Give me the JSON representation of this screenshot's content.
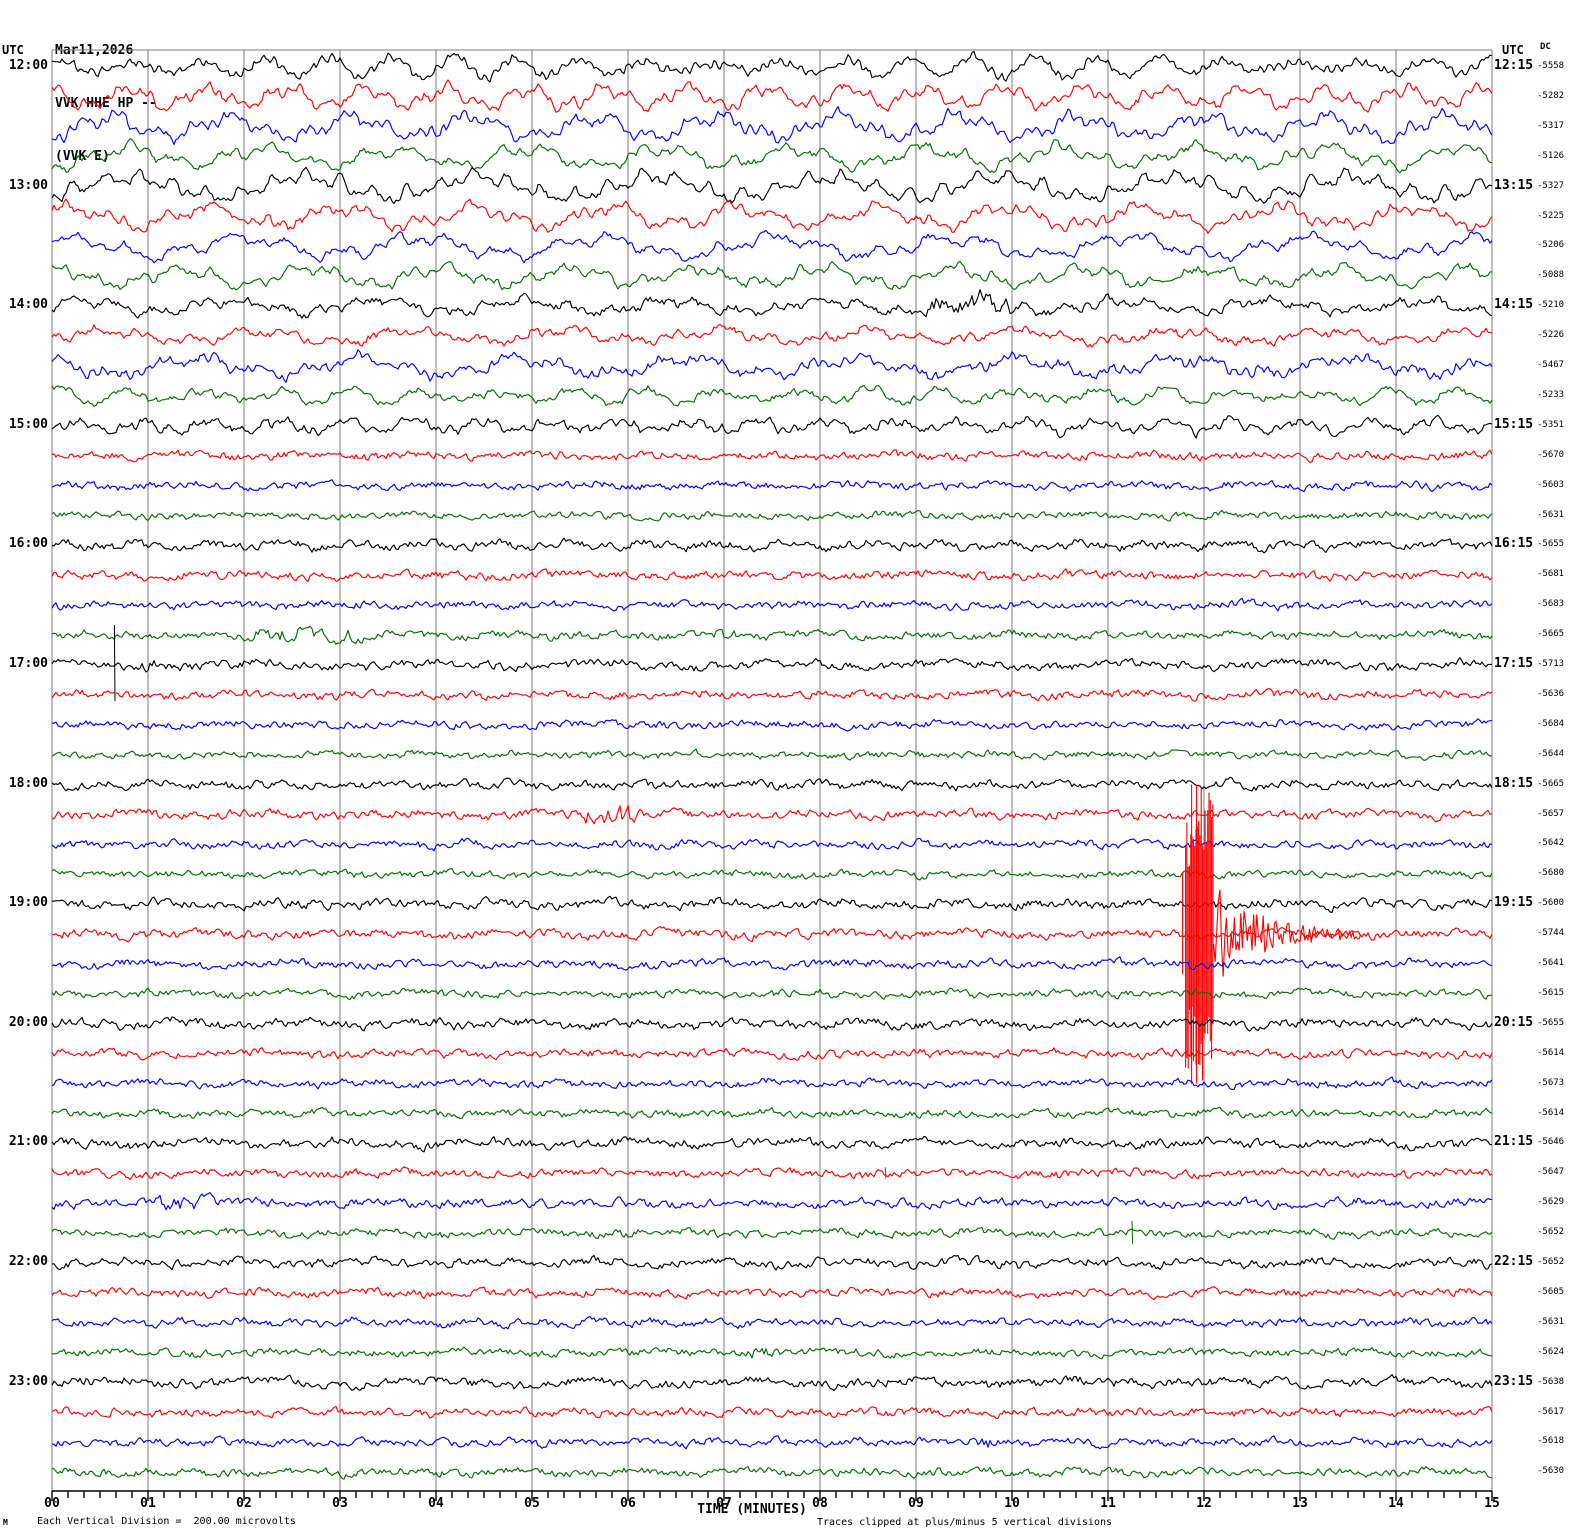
{
  "title_block": {
    "date": "Mar11,2026",
    "station_line": "VVK HHE HP --",
    "component_line": "(VVK E)"
  },
  "corner_mark": "M",
  "colors": {
    "black": "#000000",
    "red": "#ff0000",
    "blue": "#0000ff",
    "green": "#007000",
    "grid": "#7b7b7b",
    "background": "#ffffff"
  },
  "chart_data": {
    "type": "line",
    "variant": "helicorder-seismogram",
    "y_left_header": "UTC",
    "y_right_header": "UTC",
    "dc_header": "DC",
    "x_axis": {
      "title": "TIME (MINUTES)",
      "tick_labels": [
        "00",
        "01",
        "02",
        "03",
        "04",
        "05",
        "06",
        "07",
        "08",
        "09",
        "10",
        "11",
        "12",
        "13",
        "14",
        "15"
      ],
      "range_minutes": [
        0,
        15
      ],
      "minor_ticks_per_minute": 6
    },
    "scale_note": "Each Vertical Division =  200.00 microvolts",
    "clip_note": "Traces clipped at plus/minus 5 vertical divisions",
    "clip_divisions": 5,
    "microvolts_per_division": 200.0,
    "rows": [
      {
        "color": "black",
        "left": "12:00",
        "right": "12:15",
        "dc": -5558,
        "amp_slow": 7,
        "amp_fast": 2.2,
        "events": []
      },
      {
        "color": "red",
        "left": null,
        "right": null,
        "dc": -5282,
        "amp_slow": 8,
        "amp_fast": 2.2,
        "events": []
      },
      {
        "color": "blue",
        "left": null,
        "right": null,
        "dc": -5317,
        "amp_slow": 9,
        "amp_fast": 2.2,
        "events": []
      },
      {
        "color": "green",
        "left": null,
        "right": null,
        "dc": -5126,
        "amp_slow": 8,
        "amp_fast": 2.2,
        "events": []
      },
      {
        "color": "black",
        "left": "13:00",
        "right": "13:15",
        "dc": -5327,
        "amp_slow": 9,
        "amp_fast": 2.4,
        "events": []
      },
      {
        "color": "red",
        "left": null,
        "right": null,
        "dc": -5225,
        "amp_slow": 8,
        "amp_fast": 2.4,
        "events": []
      },
      {
        "color": "blue",
        "left": null,
        "right": null,
        "dc": -5206,
        "amp_slow": 8,
        "amp_fast": 2.2,
        "events": []
      },
      {
        "color": "green",
        "left": null,
        "right": null,
        "dc": -5088,
        "amp_slow": 7,
        "amp_fast": 2.2,
        "events": []
      },
      {
        "color": "black",
        "left": "14:00",
        "right": "14:15",
        "dc": -5210,
        "amp_slow": 5,
        "amp_fast": 2.6,
        "events": [
          {
            "type": "burst",
            "t0": 9.05,
            "t1": 10.05,
            "amp": 6
          }
        ]
      },
      {
        "color": "red",
        "left": null,
        "right": null,
        "dc": -5226,
        "amp_slow": 5,
        "amp_fast": 2.4,
        "events": []
      },
      {
        "color": "blue",
        "left": null,
        "right": null,
        "dc": -5467,
        "amp_slow": 7,
        "amp_fast": 2.4,
        "events": []
      },
      {
        "color": "green",
        "left": null,
        "right": null,
        "dc": -5233,
        "amp_slow": 5,
        "amp_fast": 2.2,
        "events": []
      },
      {
        "color": "black",
        "left": "15:00",
        "right": "15:15",
        "dc": -5351,
        "amp_slow": 4.5,
        "amp_fast": 2.4,
        "events": []
      },
      {
        "color": "red",
        "left": null,
        "right": null,
        "dc": -5670,
        "amp_slow": 1.2,
        "amp_fast": 2.6,
        "events": []
      },
      {
        "color": "blue",
        "left": null,
        "right": null,
        "dc": -5603,
        "amp_slow": 1.5,
        "amp_fast": 2.4,
        "events": []
      },
      {
        "color": "green",
        "left": null,
        "right": null,
        "dc": -5631,
        "amp_slow": 1.2,
        "amp_fast": 2.2,
        "events": []
      },
      {
        "color": "black",
        "left": "16:00",
        "right": "16:15",
        "dc": -5655,
        "amp_slow": 2.2,
        "amp_fast": 2.6,
        "events": []
      },
      {
        "color": "red",
        "left": null,
        "right": null,
        "dc": -5681,
        "amp_slow": 1.5,
        "amp_fast": 2.6,
        "events": []
      },
      {
        "color": "blue",
        "left": null,
        "right": null,
        "dc": -5683,
        "amp_slow": 1.5,
        "amp_fast": 2.4,
        "events": []
      },
      {
        "color": "green",
        "left": null,
        "right": null,
        "dc": -5665,
        "amp_slow": 1.5,
        "amp_fast": 2.4,
        "events": [
          {
            "type": "burst",
            "t0": 2.0,
            "t1": 3.3,
            "amp": 4.5
          },
          {
            "type": "burst",
            "t0": 6.5,
            "t1": 7.2,
            "amp": 3.5
          }
        ]
      },
      {
        "color": "black",
        "left": "17:00",
        "right": "17:15",
        "dc": -5713,
        "amp_slow": 2,
        "amp_fast": 2.6,
        "events": [
          {
            "type": "spike",
            "t": 0.65,
            "h": 40
          },
          {
            "type": "burst",
            "t0": 0.68,
            "t1": 1.2,
            "amp": 4.5
          }
        ]
      },
      {
        "color": "red",
        "left": null,
        "right": null,
        "dc": -5636,
        "amp_slow": 1.5,
        "amp_fast": 2.6,
        "events": []
      },
      {
        "color": "blue",
        "left": null,
        "right": null,
        "dc": -5684,
        "amp_slow": 1.2,
        "amp_fast": 2.4,
        "events": []
      },
      {
        "color": "green",
        "left": null,
        "right": null,
        "dc": -5644,
        "amp_slow": 1.2,
        "amp_fast": 2.2,
        "events": []
      },
      {
        "color": "black",
        "left": "18:00",
        "right": "18:15",
        "dc": -5665,
        "amp_slow": 2,
        "amp_fast": 2.6,
        "events": []
      },
      {
        "color": "red",
        "left": null,
        "right": null,
        "dc": -5657,
        "amp_slow": 1.5,
        "amp_fast": 2.8,
        "events": [
          {
            "type": "burst",
            "t0": 5.45,
            "t1": 6.15,
            "amp": 7
          }
        ]
      },
      {
        "color": "blue",
        "left": null,
        "right": null,
        "dc": -5642,
        "amp_slow": 1.5,
        "amp_fast": 2.4,
        "events": []
      },
      {
        "color": "green",
        "left": null,
        "right": null,
        "dc": -5680,
        "amp_slow": 1.2,
        "amp_fast": 2.2,
        "events": []
      },
      {
        "color": "black",
        "left": "19:00",
        "right": "19:15",
        "dc": -5600,
        "amp_slow": 2,
        "amp_fast": 2.8,
        "events": []
      },
      {
        "color": "red",
        "left": null,
        "right": null,
        "dc": -5744,
        "amp_slow": 1.5,
        "amp_fast": 2.8,
        "events": [
          {
            "type": "quake",
            "t": 11.85
          }
        ]
      },
      {
        "color": "blue",
        "left": null,
        "right": null,
        "dc": -5641,
        "amp_slow": 1.5,
        "amp_fast": 2.6,
        "events": []
      },
      {
        "color": "green",
        "left": null,
        "right": null,
        "dc": -5615,
        "amp_slow": 1.5,
        "amp_fast": 2.4,
        "events": []
      },
      {
        "color": "black",
        "left": "20:00",
        "right": "20:15",
        "dc": -5655,
        "amp_slow": 2,
        "amp_fast": 2.8,
        "events": []
      },
      {
        "color": "red",
        "left": null,
        "right": null,
        "dc": -5614,
        "amp_slow": 1.5,
        "amp_fast": 2.6,
        "events": []
      },
      {
        "color": "blue",
        "left": null,
        "right": null,
        "dc": -5673,
        "amp_slow": 1.5,
        "amp_fast": 2.4,
        "events": []
      },
      {
        "color": "green",
        "left": null,
        "right": null,
        "dc": -5614,
        "amp_slow": 1.2,
        "amp_fast": 2.4,
        "events": []
      },
      {
        "color": "black",
        "left": "21:00",
        "right": "21:15",
        "dc": -5646,
        "amp_slow": 2,
        "amp_fast": 2.8,
        "events": []
      },
      {
        "color": "red",
        "left": null,
        "right": null,
        "dc": -5647,
        "amp_slow": 1.5,
        "amp_fast": 2.6,
        "events": [
          {
            "type": "spike",
            "t": 8.68,
            "h": 6
          }
        ]
      },
      {
        "color": "blue",
        "left": null,
        "right": null,
        "dc": -5629,
        "amp_slow": 1.5,
        "amp_fast": 2.6,
        "events": [
          {
            "type": "burst",
            "t0": 1.05,
            "t1": 1.8,
            "amp": 5.5
          }
        ]
      },
      {
        "color": "green",
        "left": null,
        "right": null,
        "dc": -5652,
        "amp_slow": 1.5,
        "amp_fast": 2.4,
        "events": [
          {
            "type": "spike",
            "t": 11.25,
            "h": 12
          }
        ]
      },
      {
        "color": "black",
        "left": "22:00",
        "right": "22:15",
        "dc": -5652,
        "amp_slow": 2,
        "amp_fast": 2.6,
        "events": []
      },
      {
        "color": "red",
        "left": null,
        "right": null,
        "dc": -5605,
        "amp_slow": 1.2,
        "amp_fast": 2.6,
        "events": []
      },
      {
        "color": "blue",
        "left": null,
        "right": null,
        "dc": -5631,
        "amp_slow": 1.5,
        "amp_fast": 2.4,
        "events": []
      },
      {
        "color": "green",
        "left": null,
        "right": null,
        "dc": -5624,
        "amp_slow": 1.5,
        "amp_fast": 2.4,
        "events": [
          {
            "type": "burst",
            "t0": 7.1,
            "t1": 7.6,
            "amp": 4
          }
        ]
      },
      {
        "color": "black",
        "left": "23:00",
        "right": "23:15",
        "dc": -5638,
        "amp_slow": 2,
        "amp_fast": 2.8,
        "events": []
      },
      {
        "color": "red",
        "left": null,
        "right": null,
        "dc": -5617,
        "amp_slow": 1.2,
        "amp_fast": 2.6,
        "events": []
      },
      {
        "color": "blue",
        "left": null,
        "right": null,
        "dc": -5618,
        "amp_slow": 1.5,
        "amp_fast": 2.4,
        "events": [
          {
            "type": "burst",
            "t0": 9.5,
            "t1": 9.95,
            "amp": 4.5
          }
        ]
      },
      {
        "color": "green",
        "left": null,
        "right": null,
        "dc": -5630,
        "amp_slow": 1.5,
        "amp_fast": 2.4,
        "events": []
      }
    ]
  }
}
